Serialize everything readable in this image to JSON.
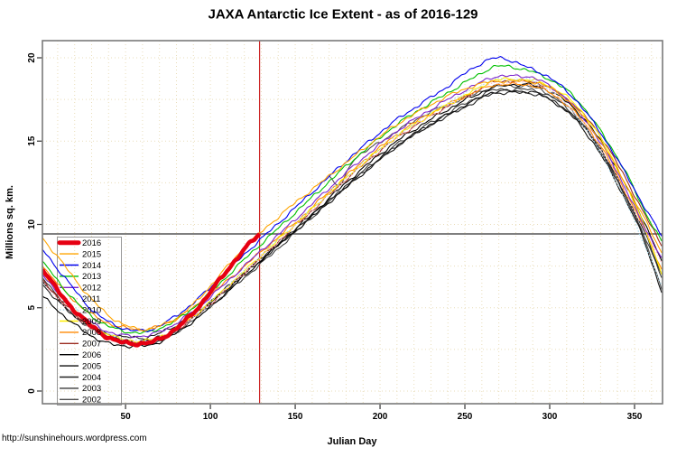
{
  "title": "JAXA Antarctic Ice Extent - as of 2016-129",
  "watermark": "http://sunshinehours.wordpress.com",
  "chart_data": {
    "type": "line",
    "title": "JAXA Antarctic Ice Extent - as of 2016-129",
    "xlabel": "Julian Day",
    "ylabel": "Millions sq. km.",
    "xlim": [
      1,
      366
    ],
    "ylim": [
      -0.76,
      21.03
    ],
    "x_ticks": [
      50,
      100,
      150,
      200,
      250,
      300,
      350
    ],
    "y_ticks": [
      0,
      5,
      10,
      15,
      20
    ],
    "grid": {
      "x_step": 10,
      "y_step": 2.5,
      "color": "#e9ddba",
      "style": "dotted"
    },
    "annotations": {
      "vline": {
        "x": 129,
        "color": "#cd2626",
        "meaning": "current Julian day 129"
      },
      "hline": {
        "y": 9.43,
        "color": "#555555",
        "meaning": "2016 extent as of day 129"
      }
    },
    "legend_position": "middle-left",
    "anchor_days": [
      1,
      15,
      30,
      45,
      60,
      75,
      90,
      105,
      120,
      135,
      150,
      165,
      180,
      195,
      210,
      225,
      240,
      255,
      270,
      285,
      300,
      315,
      330,
      345,
      355,
      366
    ],
    "series": [
      {
        "name": "2016",
        "color": "#e60012",
        "width": 4.5,
        "dash": null,
        "days": [
          1,
          15,
          30,
          45,
          60,
          75,
          90,
          105,
          120,
          129
        ],
        "values": [
          7.3,
          5.4,
          3.9,
          3.0,
          2.85,
          3.4,
          4.7,
          6.6,
          8.5,
          9.43
        ]
      },
      {
        "name": "2015",
        "color": "#ffa500",
        "width": 1.1,
        "dash": null,
        "values": [
          9.2,
          7.4,
          5.5,
          4.2,
          3.7,
          4.1,
          5.2,
          6.9,
          8.6,
          10.0,
          11.3,
          12.5,
          13.7,
          14.9,
          16.0,
          16.9,
          17.7,
          18.3,
          18.6,
          18.6,
          18.2,
          17.0,
          15.0,
          12.4,
          10.5,
          8.3
        ]
      },
      {
        "name": "2014",
        "color": "#0000ee",
        "width": 1.1,
        "dash": null,
        "values": [
          8.5,
          6.7,
          4.9,
          3.9,
          3.6,
          4.2,
          5.3,
          6.7,
          8.2,
          9.6,
          11.0,
          12.4,
          13.8,
          15.1,
          16.3,
          17.3,
          18.3,
          19.4,
          20.0,
          19.5,
          18.8,
          17.5,
          15.5,
          13.0,
          11.2,
          9.3
        ]
      },
      {
        "name": "2013",
        "color": "#00c000",
        "width": 1.1,
        "dash": null,
        "values": [
          7.8,
          6.0,
          4.5,
          3.7,
          3.5,
          4.0,
          5.0,
          6.4,
          7.9,
          9.3,
          10.7,
          12.1,
          13.5,
          14.8,
          16.0,
          17.0,
          17.9,
          18.8,
          19.5,
          19.3,
          18.7,
          17.6,
          15.6,
          13.1,
          11.0,
          9.0
        ]
      },
      {
        "name": "2012",
        "color": "#7d26cd",
        "width": 1.1,
        "dash": null,
        "values": [
          7.0,
          5.3,
          4.1,
          3.4,
          3.3,
          3.8,
          4.8,
          6.1,
          7.5,
          8.9,
          10.3,
          11.7,
          13.1,
          14.4,
          15.6,
          16.6,
          17.5,
          18.3,
          18.9,
          18.9,
          18.3,
          17.0,
          14.9,
          12.1,
          10.0,
          8.0
        ]
      },
      {
        "name": "2011",
        "color": "#ffb5c5",
        "width": 1.2,
        "dash": "1.5 2.2",
        "values": [
          6.6,
          5.0,
          3.7,
          3.0,
          2.9,
          3.4,
          4.4,
          5.7,
          7.1,
          8.5,
          9.9,
          11.3,
          12.7,
          14.0,
          15.2,
          16.2,
          17.1,
          17.9,
          18.5,
          18.5,
          18.0,
          16.7,
          14.6,
          11.8,
          9.8,
          7.7
        ]
      },
      {
        "name": "2010",
        "color": "#a8d8e8",
        "width": 1.2,
        "dash": "1.5 2.2",
        "values": [
          7.2,
          5.5,
          4.1,
          3.2,
          3.0,
          3.4,
          4.5,
          5.8,
          7.2,
          8.6,
          10.0,
          11.4,
          12.8,
          14.1,
          15.3,
          16.4,
          17.3,
          18.1,
          18.7,
          18.7,
          18.1,
          16.6,
          14.3,
          11.3,
          9.0,
          6.3
        ]
      },
      {
        "name": "2009",
        "color": "#ffee00",
        "width": 1.1,
        "dash": null,
        "values": [
          7.1,
          5.4,
          4.0,
          3.2,
          3.0,
          3.5,
          4.5,
          5.8,
          7.2,
          8.6,
          10.0,
          11.4,
          12.8,
          14.1,
          15.3,
          16.3,
          17.2,
          18.0,
          18.7,
          18.7,
          18.3,
          17.2,
          15.2,
          12.3,
          10.1,
          7.0
        ]
      },
      {
        "name": "2008",
        "color": "#ff8800",
        "width": 1.1,
        "dash": null,
        "values": [
          7.5,
          5.9,
          4.6,
          3.9,
          3.7,
          4.1,
          5.0,
          6.2,
          7.5,
          8.8,
          10.1,
          11.5,
          12.9,
          14.2,
          15.4,
          16.4,
          17.2,
          17.9,
          18.4,
          18.4,
          17.9,
          16.7,
          14.7,
          11.9,
          9.9,
          7.3
        ]
      },
      {
        "name": "2007",
        "color": "#9b2d20",
        "width": 1.1,
        "dash": null,
        "values": [
          6.7,
          5.1,
          3.8,
          3.1,
          2.9,
          3.4,
          4.4,
          5.7,
          7.1,
          8.5,
          9.9,
          11.3,
          12.7,
          14.0,
          15.2,
          16.2,
          17.1,
          17.9,
          18.6,
          18.6,
          18.2,
          17.1,
          15.3,
          12.7,
          10.8,
          8.7
        ]
      },
      {
        "name": "2006",
        "color": "#000000",
        "width": 1.1,
        "dash": null,
        "values": [
          5.7,
          4.4,
          3.3,
          2.75,
          2.7,
          3.2,
          4.2,
          5.5,
          6.9,
          8.3,
          9.7,
          11.1,
          12.5,
          13.8,
          15.0,
          16.0,
          16.9,
          17.7,
          18.3,
          18.4,
          18.0,
          16.9,
          15.0,
          12.3,
          10.3,
          7.8
        ]
      },
      {
        "name": "2005",
        "color": "#111111",
        "width": 1.1,
        "dash": null,
        "values": [
          6.6,
          5.0,
          3.8,
          3.1,
          3.0,
          3.5,
          4.5,
          5.7,
          7.0,
          8.3,
          9.6,
          10.9,
          12.2,
          13.5,
          14.7,
          15.7,
          16.6,
          17.4,
          18.0,
          18.0,
          17.5,
          16.3,
          14.2,
          11.4,
          9.2,
          5.9
        ]
      },
      {
        "name": "2004",
        "color": "#222222",
        "width": 1.1,
        "dash": null,
        "values": [
          6.4,
          4.9,
          3.8,
          3.3,
          3.2,
          3.7,
          4.6,
          5.8,
          7.1,
          8.4,
          9.7,
          11.0,
          12.3,
          13.5,
          14.7,
          15.7,
          16.5,
          17.3,
          17.9,
          17.9,
          17.5,
          16.4,
          14.5,
          11.7,
          9.7,
          7.0
        ]
      },
      {
        "name": "2003",
        "color": "#3c3c3c",
        "width": 1.1,
        "dash": null,
        "values": [
          6.8,
          5.2,
          3.9,
          3.0,
          2.8,
          3.2,
          4.3,
          5.5,
          6.8,
          8.1,
          9.5,
          10.9,
          12.3,
          13.6,
          14.8,
          15.8,
          16.7,
          17.5,
          18.1,
          18.1,
          17.7,
          16.5,
          14.4,
          11.6,
          9.5,
          6.8
        ]
      },
      {
        "name": "2002",
        "color": "#505050",
        "width": 1.1,
        "dash": null,
        "days": [
          170,
          176,
          183,
          195,
          210,
          225,
          240,
          255,
          270,
          285,
          300,
          315,
          330,
          345,
          355,
          366
        ],
        "values": [
          12.9,
          12.3,
          13.7,
          14.6,
          15.6,
          16.5,
          17.2,
          17.8,
          18.3,
          18.3,
          17.8,
          16.6,
          14.5,
          11.6,
          9.4,
          6.1
        ]
      }
    ]
  },
  "frame": {
    "box_color": "#7a7a7a",
    "tick_color": "#333333"
  }
}
